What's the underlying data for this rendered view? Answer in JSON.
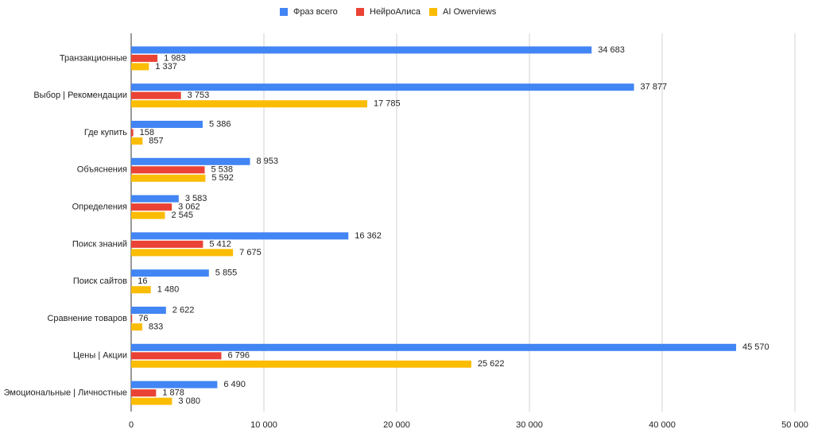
{
  "chart_data": {
    "type": "bar",
    "categories": [
      "Транзакционные",
      "Выбор | Рекомендации",
      "Где купить",
      "Объяснения",
      "Определения",
      "Поиск знаний",
      "Поиск сайтов",
      "Сравнение товаров",
      "Цены | Акции",
      "Эмоциональные | Личностные"
    ],
    "series": [
      {
        "name": "Фраз всего",
        "color": "#4285f4",
        "values": [
          34683,
          37877,
          5386,
          8953,
          3583,
          16362,
          5855,
          2622,
          45570,
          6490
        ],
        "value_labels": [
          "34 683",
          "37 877",
          "5 386",
          "8 953",
          "3 583",
          "16 362",
          "5 855",
          "2 622",
          "45 570",
          "6 490"
        ]
      },
      {
        "name": "НейроАлиса",
        "color": "#ea4335",
        "values": [
          1983,
          3753,
          158,
          5538,
          3062,
          5412,
          16,
          76,
          6796,
          1878
        ],
        "value_labels": [
          "1 983",
          "3 753",
          "158",
          "5 538",
          "3 062",
          "5 412",
          "16",
          "76",
          "6 796",
          "1 878"
        ]
      },
      {
        "name": "AI Owerviews",
        "color": "#fbbc04",
        "values": [
          1337,
          17785,
          857,
          5592,
          2545,
          7675,
          1480,
          833,
          25622,
          3080
        ],
        "value_labels": [
          "1 337",
          "17 785",
          "857",
          "5 592",
          "2 545",
          "7 675",
          "1 480",
          "833",
          "25 622",
          "3 080"
        ]
      }
    ],
    "xlim": [
      0,
      50000
    ],
    "xticks": [
      0,
      {
        "value": 10000,
        "label": "10 000"
      },
      {
        "value": 20000,
        "label": "20 000"
      },
      {
        "value": 30000,
        "label": "30 000"
      },
      {
        "value": 40000,
        "label": "40 000"
      },
      {
        "value": 50000,
        "label": "50 000"
      }
    ],
    "grid": true
  }
}
